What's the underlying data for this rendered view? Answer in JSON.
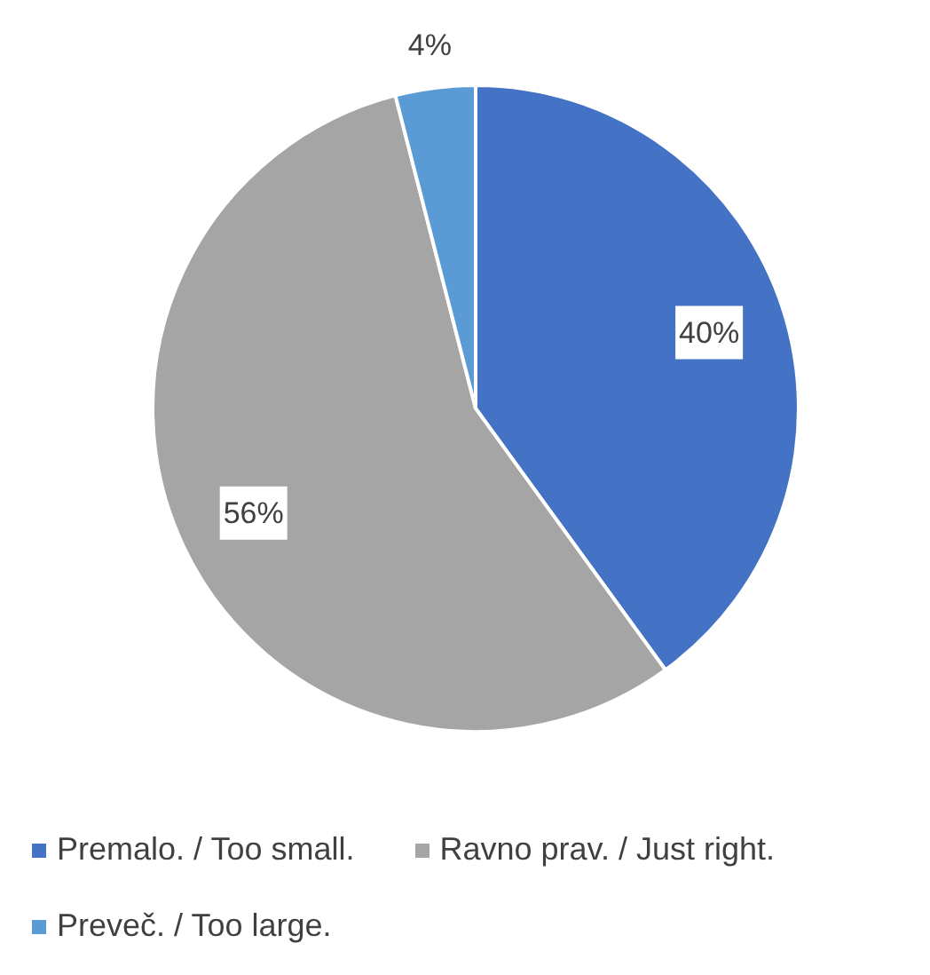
{
  "chart_data": {
    "type": "pie",
    "categories": [
      "Premalo. / Too small.",
      "Ravno prav. / Just right.",
      "Preveč. / Too large."
    ],
    "values": [
      40,
      56,
      4
    ],
    "colors": [
      "#4472c4",
      "#a5a5a5",
      "#5b9bd5"
    ],
    "value_labels": [
      "40%",
      "56%",
      "4%"
    ],
    "legend": "bottom"
  }
}
